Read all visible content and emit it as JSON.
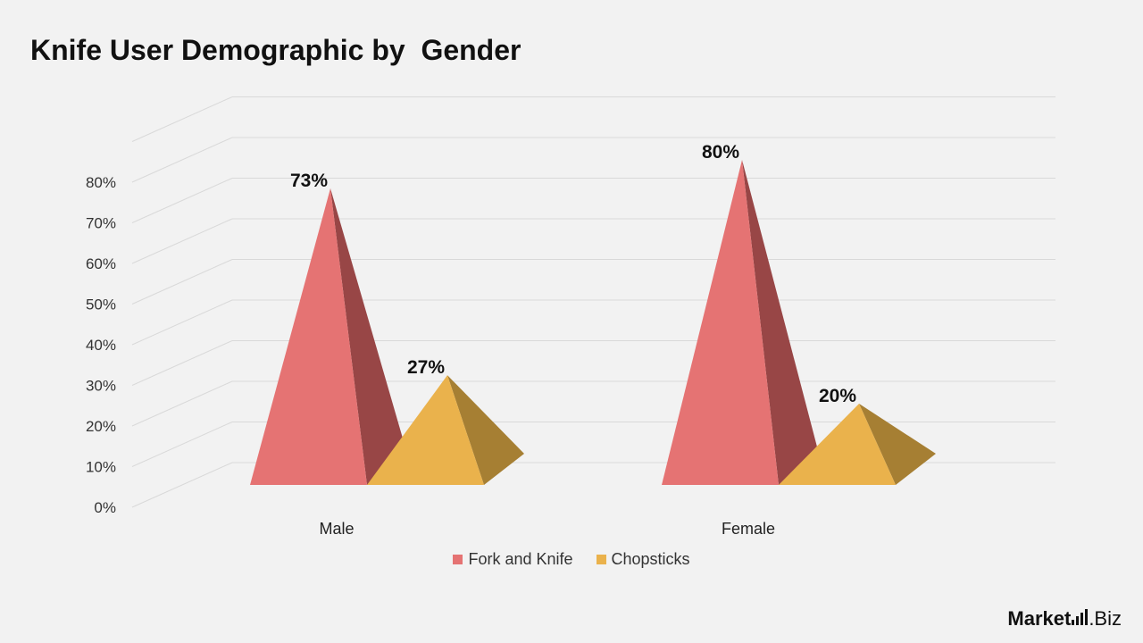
{
  "title": "Knife User Demographic by  Gender",
  "chart_data": {
    "type": "bar",
    "shape": "3d-pyramid",
    "categories": [
      "Male",
      "Female"
    ],
    "series": [
      {
        "name": "Fork and Knife",
        "values": [
          73,
          80
        ],
        "labels": [
          "73%",
          "80%"
        ],
        "color": "#e57373",
        "shade": "#984646"
      },
      {
        "name": "Chopsticks",
        "values": [
          27,
          20
        ],
        "labels": [
          "27%",
          "20%"
        ],
        "color": "#eab24c",
        "shade": "#a67f33"
      }
    ],
    "ylim": [
      0,
      80
    ],
    "y_ticks": [
      "0%",
      "10%",
      "20%",
      "30%",
      "40%",
      "50%",
      "60%",
      "70%",
      "80%"
    ],
    "grid": true,
    "legend": "bottom"
  },
  "logo": {
    "brand_bold": "Market",
    "brand_suffix": ".Biz"
  }
}
